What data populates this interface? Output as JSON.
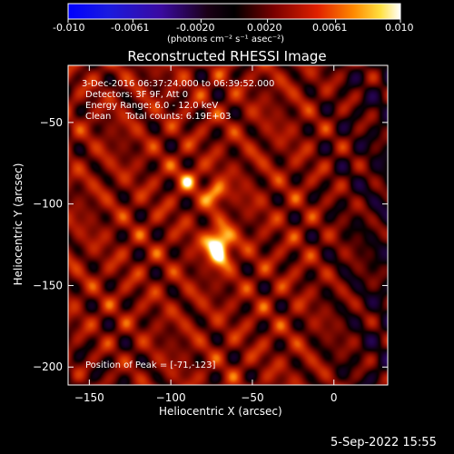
{
  "colorbar": {
    "tick_labels": [
      "-0.010",
      "-0.0061",
      "-0.0020",
      "0.0020",
      "0.0061",
      "0.010"
    ],
    "unit_label": "(photons cm⁻² s⁻¹ asec⁻²)"
  },
  "chart_data": {
    "type": "heatmap",
    "title": "Reconstructed RHESSI Image",
    "xlabel": "Heliocentric X (arcsec)",
    "ylabel": "Heliocentric Y (arcsec)",
    "xlim": [
      -163,
      33
    ],
    "ylim": [
      -211,
      -15
    ],
    "x_ticks": [
      -150,
      -100,
      -50,
      0
    ],
    "y_ticks": [
      -50,
      -100,
      -150,
      -200
    ],
    "x_tick_labels": [
      "−150",
      "−100",
      "−50",
      "0"
    ],
    "y_tick_labels": [
      "−50",
      "−100",
      "−150",
      "−200"
    ],
    "colormap": "RHESSI heat (black-purple-red-orange-yellow-white)",
    "value_range": [
      -0.01,
      0.01
    ],
    "annotations": [
      "3-Dec-2016 06:37:24.000 to 06:39:52.000",
      "Detectors: 3F 9F, Att 0",
      "Energy Range: 6.0 - 12.0 keV",
      "Clean     Total counts: 6.19E+03"
    ],
    "peak_label": "Position of Peak = [-71,-123]",
    "peak_position": [
      -71,
      -123
    ],
    "secondary_sources": [
      {
        "x": -73,
        "y": -93
      },
      {
        "x": -70,
        "y": -133
      },
      {
        "x": -90,
        "y": -84
      }
    ]
  },
  "footer": {
    "timestamp": "5-Sep-2022 15:55"
  },
  "colors": {
    "background": "#000000",
    "text": "#ffffff"
  }
}
